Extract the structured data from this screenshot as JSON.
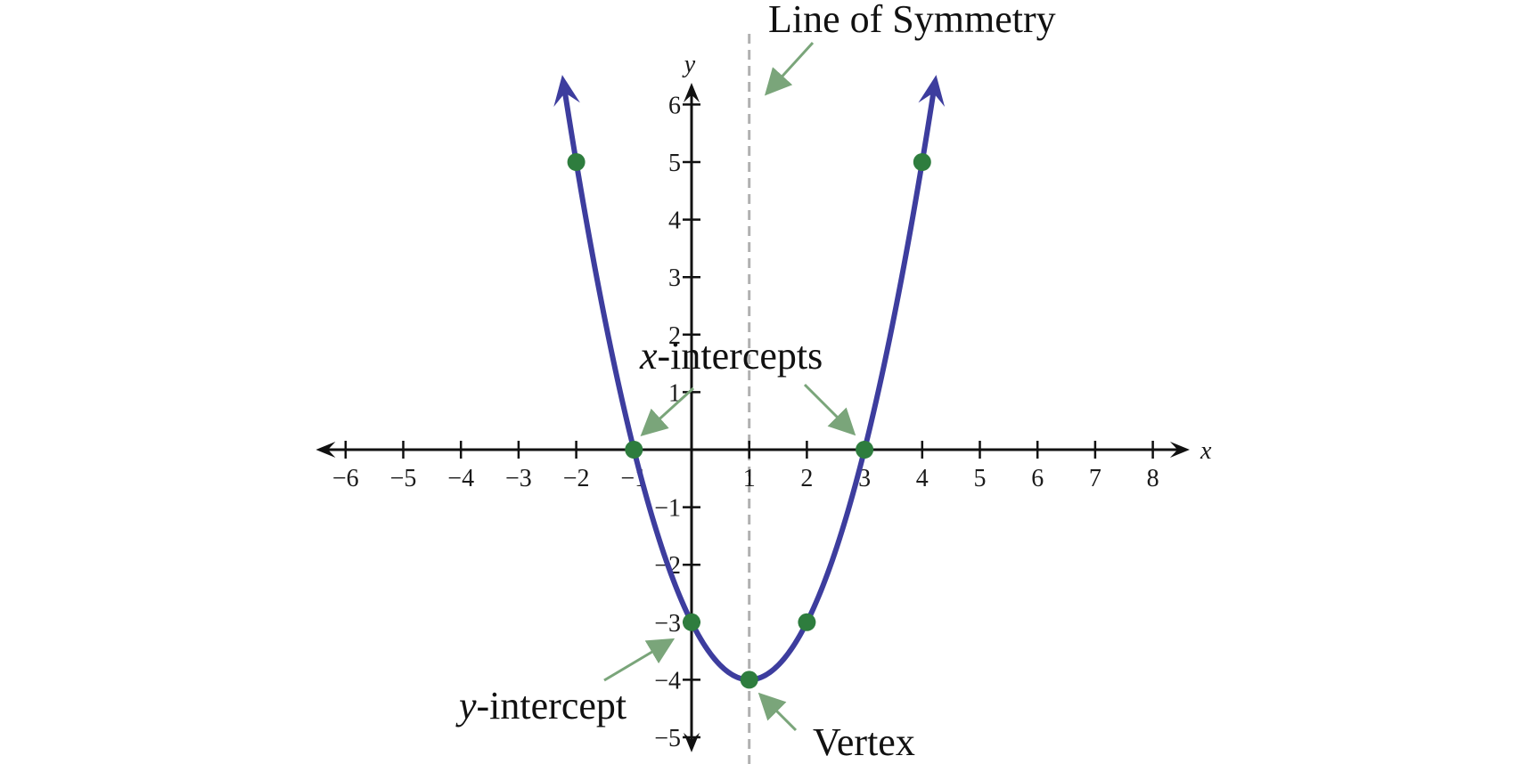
{
  "chart_data": {
    "type": "line",
    "title": "",
    "xlabel": "x",
    "ylabel": "y",
    "xlim": [
      -6.5,
      8.5
    ],
    "ylim": [
      -5.2,
      6.3
    ],
    "x_ticks": [
      -6,
      -5,
      -4,
      -3,
      -2,
      -1,
      1,
      2,
      3,
      4,
      5,
      6,
      7,
      8
    ],
    "y_ticks": [
      -5,
      -4,
      -3,
      -2,
      -1,
      1,
      2,
      3,
      4,
      5,
      6
    ],
    "grid": false,
    "series": [
      {
        "function": "y = x^2 - 2x - 3",
        "x_range": [
          -2.2,
          4.2
        ],
        "color": "#3d3d9e",
        "arrows": "both"
      }
    ],
    "points": [
      {
        "x": -2,
        "y": 5
      },
      {
        "x": -1,
        "y": 0
      },
      {
        "x": 0,
        "y": -3
      },
      {
        "x": 1,
        "y": -4
      },
      {
        "x": 2,
        "y": -3
      },
      {
        "x": 3,
        "y": 0
      },
      {
        "x": 4,
        "y": 5
      }
    ],
    "point_color": "#2e7d3e",
    "symmetry_line": {
      "x": 1,
      "color": "#b0b0b0",
      "style": "dashed"
    },
    "annotations": {
      "line_of_symmetry": "Line of Symmetry",
      "x_intercepts_italic": "x",
      "x_intercepts_rest": "-intercepts",
      "y_intercept_italic": "y",
      "y_intercept_rest": "-intercept",
      "vertex": "Vertex"
    },
    "annotation_arrow_color": "#7aa57a"
  }
}
